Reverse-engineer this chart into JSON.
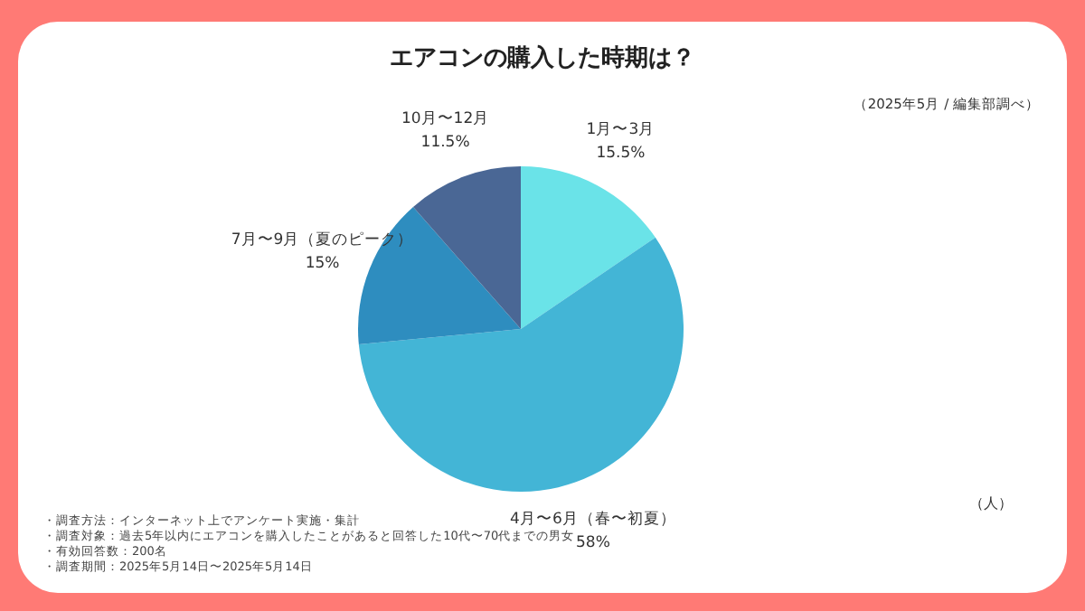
{
  "chart_data": {
    "type": "pie",
    "title": "エアコンの購入した時期は？",
    "subtitle": "（2025年5月 / 編集部調べ）",
    "categories": [
      "1月〜3月",
      "4月〜6月（春〜初夏）",
      "7月〜9月（夏のピーク）",
      "10月〜12月"
    ],
    "values": [
      15.5,
      58,
      15,
      11.5
    ],
    "colors": [
      "#6ae3e8",
      "#43b5d6",
      "#2e8dbf",
      "#4a6795"
    ],
    "value_labels": [
      "15.5%",
      "58%",
      "15%",
      "11.5%"
    ],
    "annotations": [
      "（人）",
      "・調査方法：インターネット上でアンケート実施・集計",
      "・調査対象：過去5年以内にエアコンを購入したことがあると回答した10代〜70代までの男女",
      "・有効回答数：200名",
      "・調査期間：2025年5月14日〜2025年5月14日"
    ]
  }
}
